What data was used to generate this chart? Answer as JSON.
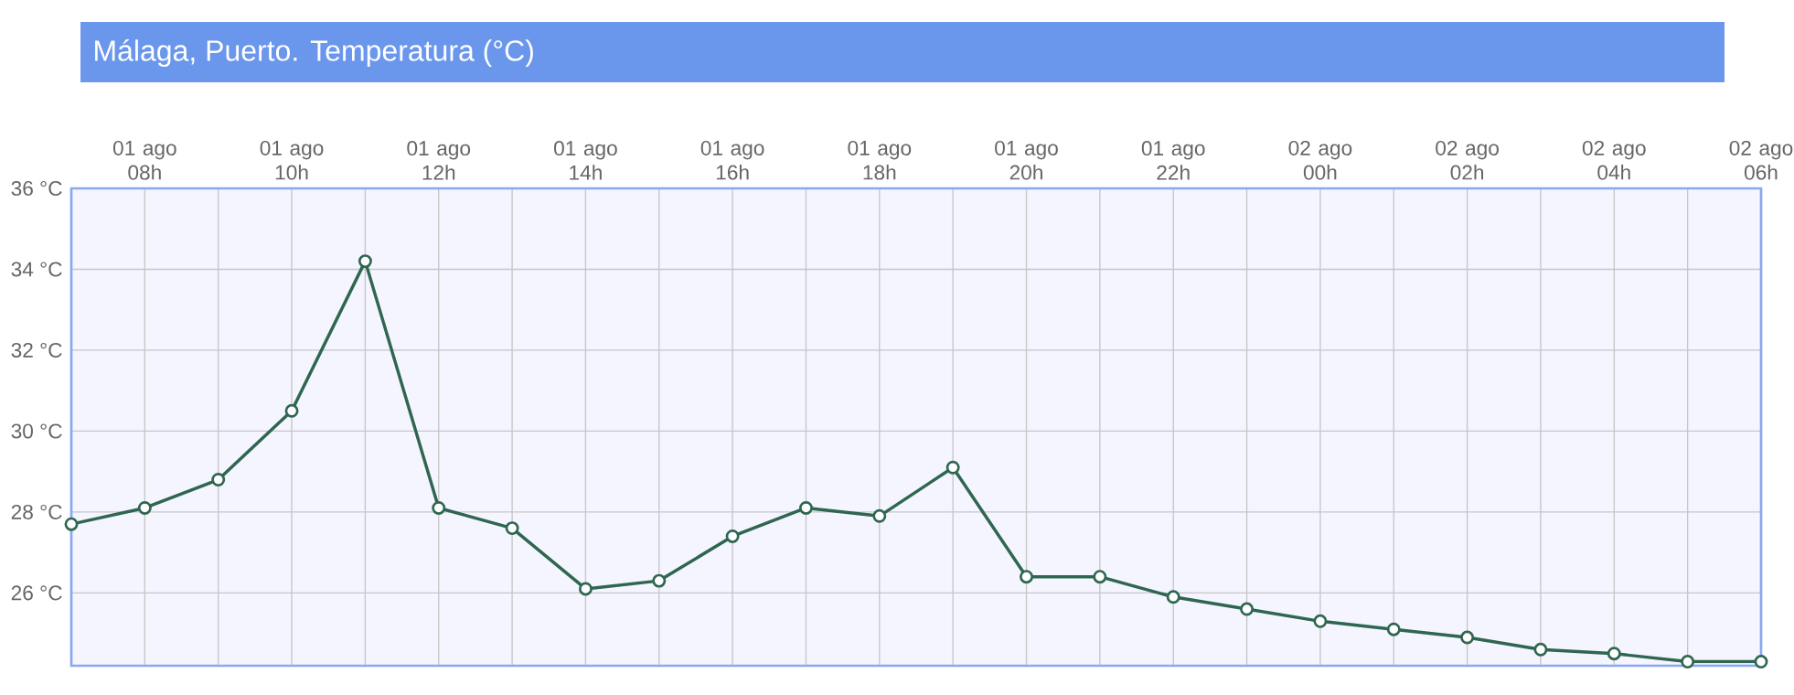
{
  "chart_data": {
    "type": "line",
    "title": "Málaga, Puerto. Temperatura (°C)",
    "categories": [
      null,
      "01 ago 08h",
      null,
      "01 ago 10h",
      null,
      "01 ago 12h",
      null,
      "01 ago 14h",
      null,
      "01 ago 16h",
      null,
      "01 ago 18h",
      null,
      "01 ago 20h",
      null,
      "01 ago 22h",
      null,
      "02 ago 00h",
      null,
      "02 ago 02h",
      null,
      "02 ago 04h",
      null,
      "02 ago 06h"
    ],
    "series": [
      {
        "color": "#2f6650",
        "values": [
          27.7,
          28.1,
          28.8,
          30.5,
          34.2,
          28.1,
          27.6,
          26.1,
          26.3,
          27.4,
          28.1,
          27.9,
          29.1,
          26.4,
          26.4,
          25.9,
          25.6,
          25.3,
          25.1,
          24.9,
          24.6,
          24.5,
          24.3,
          24.3
        ]
      }
    ],
    "ylim": [
      24.2,
      36
    ],
    "yticks": [
      {
        "value": 26,
        "label": "26 °C"
      },
      {
        "value": 28,
        "label": "28 °C"
      },
      {
        "value": 30,
        "label": "30 °C"
      },
      {
        "value": 32,
        "label": "32 °C"
      },
      {
        "value": 34,
        "label": "34 °C"
      },
      {
        "value": 36,
        "label": "36 °C"
      }
    ],
    "grid": true,
    "marker": "circle",
    "line_style": "solid"
  }
}
